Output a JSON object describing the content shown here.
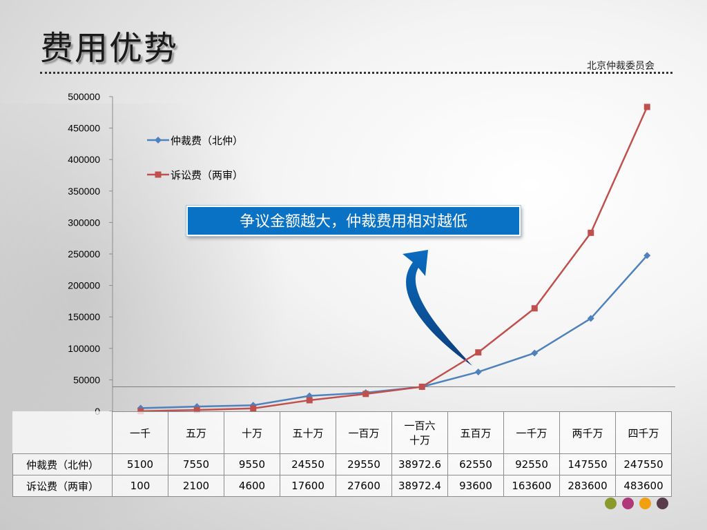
{
  "slide": {
    "title": "费用优势",
    "org": "北京仲裁委员会",
    "callout": "争议金额越大，仲裁费用相对越低"
  },
  "colors": {
    "series1": "#4f81bd",
    "series2": "#c0504d",
    "callout_bg": "#0a72c4",
    "arrow": "#0a6cc0",
    "dots": [
      "#8a9a2b",
      "#b0387a",
      "#f0a010",
      "#5a3b4a"
    ]
  },
  "chart_data": {
    "type": "line",
    "categories": [
      "一千",
      "五万",
      "十万",
      "五十万",
      "一百万",
      "一百六十万",
      "五百万",
      "一千万",
      "两千万",
      "四千万"
    ],
    "category_lines": [
      [
        "一千"
      ],
      [
        "五万"
      ],
      [
        "十万"
      ],
      [
        "五十万"
      ],
      [
        "一百万"
      ],
      [
        "一百六",
        "十万"
      ],
      [
        "五百万"
      ],
      [
        "一千万"
      ],
      [
        "两千万"
      ],
      [
        "四千万"
      ]
    ],
    "ylim": [
      0,
      500000
    ],
    "yticks": [
      0,
      50000,
      100000,
      150000,
      200000,
      250000,
      300000,
      350000,
      400000,
      450000,
      500000
    ],
    "grid": false,
    "legend_position": "top-left",
    "series": [
      {
        "name": "仲裁费（北仲）",
        "values": [
          5100,
          7550,
          9550,
          24550,
          29550,
          38972.6,
          62550,
          92550,
          147550,
          247550
        ],
        "labels": [
          "5100",
          "7550",
          "9550",
          "24550",
          "29550",
          "38972.6",
          "62550",
          "92550",
          "147550",
          "247550"
        ],
        "marker": "diamond"
      },
      {
        "name": "诉讼费（两审）",
        "values": [
          100,
          2100,
          4600,
          17600,
          27600,
          38972.4,
          93600,
          163600,
          283600,
          483600
        ],
        "labels": [
          "100",
          "2100",
          "4600",
          "17600",
          "27600",
          "38972.4",
          "93600",
          "163600",
          "283600",
          "483600"
        ],
        "marker": "square"
      }
    ],
    "reference_line": 38972
  }
}
